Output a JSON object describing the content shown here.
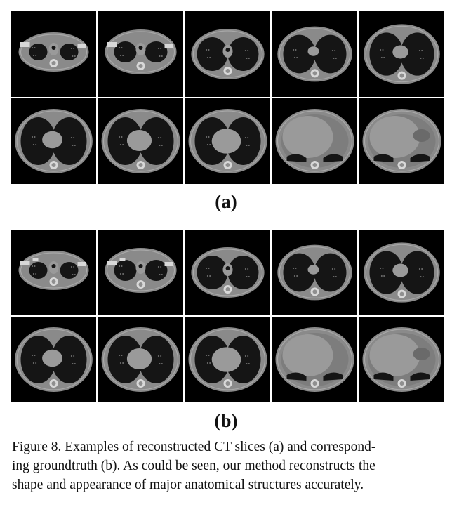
{
  "figure": {
    "label_a": "(a)",
    "label_b": "(b)",
    "caption_lines": [
      "Figure 8. Examples of reconstructed CT slices (a) and correspond-",
      "ing groundtruth (b).  As could be seen, our method reconstructs the",
      "shape and appearance of major anatomical structures accurately."
    ]
  },
  "panels": [
    {
      "id": "a",
      "content": "reconstructed",
      "rows": 2,
      "cols": 5
    },
    {
      "id": "b",
      "content": "groundtruth",
      "rows": 2,
      "cols": 5
    }
  ],
  "colors": {
    "background": "#000000",
    "soft_tissue": "#8a8a8a",
    "lung": "#151515",
    "bone": "#d8d8d8",
    "organ": "#9a9a9a",
    "text": "#111111"
  }
}
